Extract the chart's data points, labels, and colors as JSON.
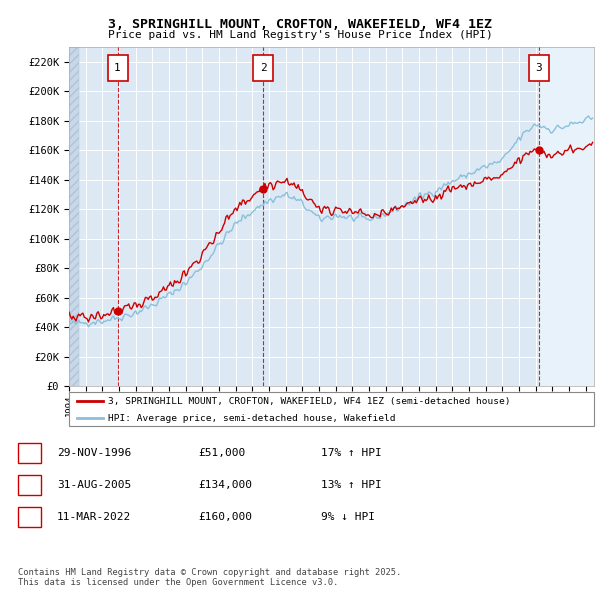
{
  "title_line1": "3, SPRINGHILL MOUNT, CROFTON, WAKEFIELD, WF4 1EZ",
  "title_line2": "Price paid vs. HM Land Registry's House Price Index (HPI)",
  "ylim": [
    0,
    230000
  ],
  "yticks": [
    0,
    20000,
    40000,
    60000,
    80000,
    100000,
    120000,
    140000,
    160000,
    180000,
    200000,
    220000
  ],
  "ytick_labels": [
    "£0",
    "£20K",
    "£40K",
    "£60K",
    "£80K",
    "£100K",
    "£120K",
    "£140K",
    "£160K",
    "£180K",
    "£200K",
    "£220K"
  ],
  "hpi_color": "#8bbfdb",
  "price_color": "#cc0000",
  "dline_color": "#cc0000",
  "bg_color": "#dce9f5",
  "bg_color_future": "#e8f2fb",
  "grid_color": "#ffffff",
  "legend_label_price": "3, SPRINGHILL MOUNT, CROFTON, WAKEFIELD, WF4 1EZ (semi-detached house)",
  "legend_label_hpi": "HPI: Average price, semi-detached house, Wakefield",
  "sales": [
    {
      "num": 1,
      "date_x": 1996.91,
      "price": 51000
    },
    {
      "num": 2,
      "date_x": 2005.66,
      "price": 134000
    },
    {
      "num": 3,
      "date_x": 2022.19,
      "price": 160000
    }
  ],
  "table_rows": [
    {
      "num": "1",
      "date": "29-NOV-1996",
      "price": "£51,000",
      "info": "17% ↑ HPI"
    },
    {
      "num": "2",
      "date": "31-AUG-2005",
      "price": "£134,000",
      "info": "13% ↑ HPI"
    },
    {
      "num": "3",
      "date": "11-MAR-2022",
      "price": "£160,000",
      "info": "9% ↓ HPI"
    }
  ],
  "footer": "Contains HM Land Registry data © Crown copyright and database right 2025.\nThis data is licensed under the Open Government Licence v3.0.",
  "xmin": 1994.0,
  "xmax": 2025.5,
  "last_sale_x": 2022.19
}
